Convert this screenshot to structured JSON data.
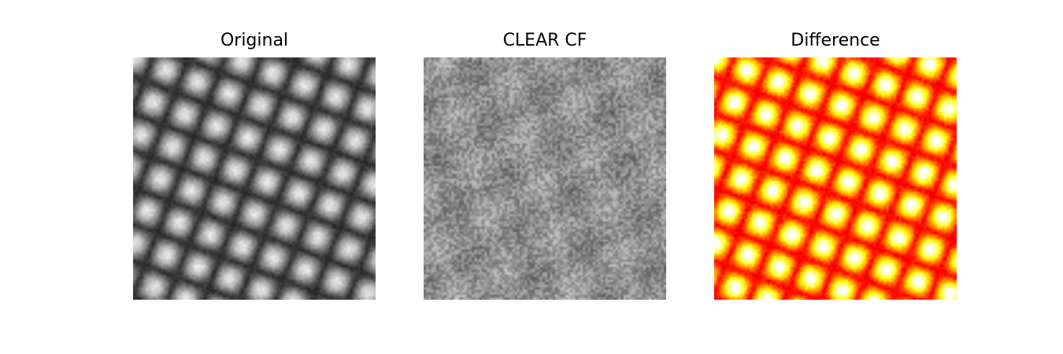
{
  "figure": {
    "panels": [
      {
        "title": "Original",
        "colormap": "gray",
        "content": "lattice"
      },
      {
        "title": "CLEAR CF",
        "colormap": "gray",
        "content": "noise"
      },
      {
        "title": "Difference",
        "colormap": "hot",
        "content": "lattice"
      }
    ]
  }
}
